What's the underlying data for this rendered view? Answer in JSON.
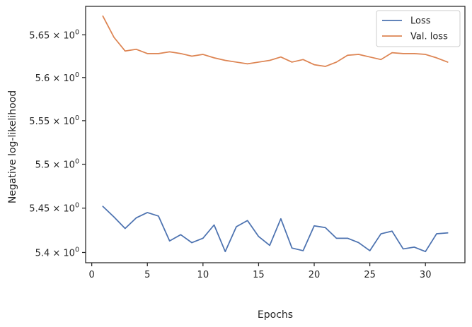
{
  "chart_data": {
    "type": "line",
    "xlabel": "Epochs",
    "ylabel": "Negative log-likelihood",
    "xlim": [
      -0.55,
      33.55
    ],
    "ylim": [
      5.3885,
      5.6835
    ],
    "yscale": "log",
    "grid": false,
    "legend_position": "top-right",
    "x_ticks": [
      0,
      5,
      10,
      15,
      20,
      25,
      30
    ],
    "x_tick_labels": [
      "0",
      "5",
      "10",
      "15",
      "20",
      "25",
      "30"
    ],
    "y_ticks": [
      5.4,
      5.45,
      5.5,
      5.55,
      5.6,
      5.65
    ],
    "y_tick_labels": [
      {
        "mantissa": "5.4",
        "base": "10",
        "exp": "0"
      },
      {
        "mantissa": "5.45",
        "base": "10",
        "exp": "0"
      },
      {
        "mantissa": "5.5",
        "base": "10",
        "exp": "0"
      },
      {
        "mantissa": "5.55",
        "base": "10",
        "exp": "0"
      },
      {
        "mantissa": "5.6",
        "base": "10",
        "exp": "0"
      },
      {
        "mantissa": "5.65",
        "base": "10",
        "exp": "0"
      }
    ],
    "x": [
      1,
      2,
      3,
      4,
      5,
      6,
      7,
      8,
      9,
      10,
      11,
      12,
      13,
      14,
      15,
      16,
      17,
      18,
      19,
      20,
      21,
      22,
      23,
      24,
      25,
      26,
      27,
      28,
      29,
      30,
      31,
      32
    ],
    "series": [
      {
        "name": "Loss",
        "color": "#4c72b0",
        "values": [
          5.452,
          5.44,
          5.427,
          5.439,
          5.445,
          5.441,
          5.413,
          5.42,
          5.411,
          5.416,
          5.431,
          5.401,
          5.429,
          5.436,
          5.418,
          5.408,
          5.438,
          5.405,
          5.402,
          5.43,
          5.428,
          5.416,
          5.416,
          5.411,
          5.402,
          5.421,
          5.424,
          5.404,
          5.406,
          5.401,
          5.421,
          5.422
        ]
      },
      {
        "name": "Val. loss",
        "color": "#dd8452",
        "values": [
          5.672,
          5.647,
          5.631,
          5.633,
          5.628,
          5.628,
          5.63,
          5.628,
          5.625,
          5.627,
          5.623,
          5.62,
          5.618,
          5.616,
          5.618,
          5.62,
          5.624,
          5.618,
          5.621,
          5.615,
          5.613,
          5.618,
          5.626,
          5.627,
          5.624,
          5.621,
          5.629,
          5.628,
          5.628,
          5.627,
          5.623,
          5.618
        ]
      }
    ]
  }
}
